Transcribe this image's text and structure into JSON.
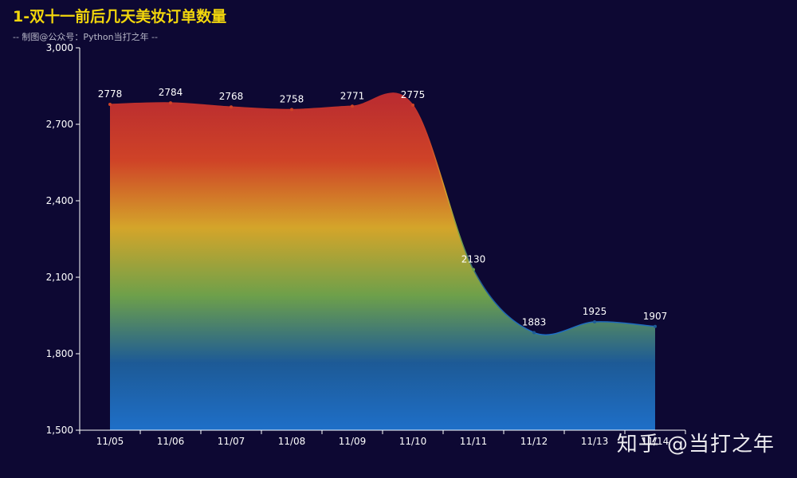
{
  "header": {
    "title": "1-双十一前后几天美妆订单数量",
    "subtitle": "-- 制图@公众号：Python当打之年 --"
  },
  "watermark": "知乎 @当打之年",
  "chart_data": {
    "type": "area",
    "title": "1-双十一前后几天美妆订单数量",
    "subtitle": "-- 制图@公众号：Python当打之年 --",
    "xlabel": "",
    "ylabel": "",
    "categories": [
      "11/05",
      "11/06",
      "11/07",
      "11/08",
      "11/09",
      "11/10",
      "11/11",
      "11/12",
      "11/13",
      "11/14"
    ],
    "series": [
      {
        "values": [
          2778,
          2784,
          2768,
          2758,
          2771,
          2775,
          2130,
          1883,
          1925,
          1907
        ]
      }
    ],
    "ylim": [
      1500,
      3000
    ],
    "yticks": [
      1500,
      1800,
      2100,
      2400,
      2700,
      3000
    ],
    "ytick_labels": [
      "1,500",
      "1,800",
      "2,100",
      "2,400",
      "2,700",
      "3,000"
    ],
    "smooth": true,
    "grid": false,
    "legend": "none",
    "gradient_colors": [
      "#b92b30",
      "#cf4327",
      "#d4a52a",
      "#6ea04a",
      "#1d5a96",
      "#1e6fc8"
    ],
    "axis_color": "#ffffff",
    "background": "#0d0833"
  }
}
